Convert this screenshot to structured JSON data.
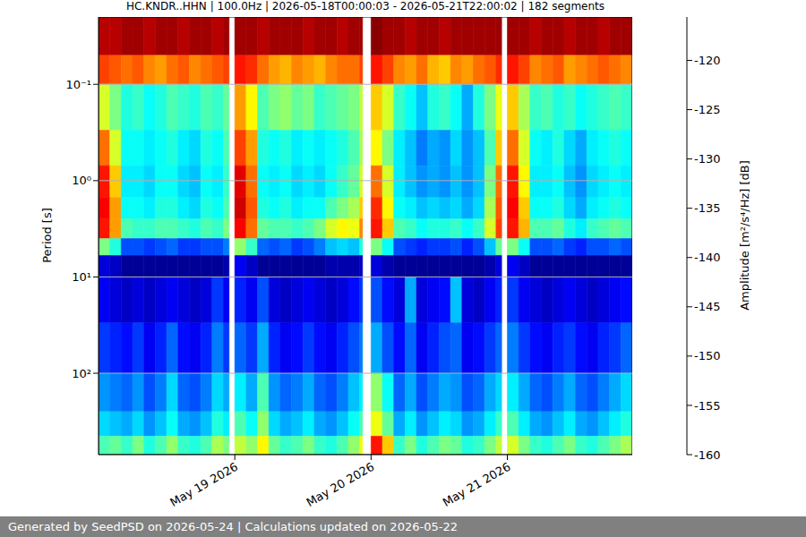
{
  "chart_data": {
    "type": "heatmap",
    "title": "HC.KNDR..HHN | 100.0Hz | 2026-05-18T00:00:03 - 2026-05-21T22:00:02 | 182 segments",
    "ylabel": "Period [s]",
    "footer": "Generated by SeedPSD on 2026-05-24 | Calculations updated on 2026-05-22",
    "log": "y",
    "grid": true,
    "x": [
      "2026-05-18T00:00",
      "2026-05-18T02:00",
      "2026-05-18T04:00",
      "2026-05-18T06:00",
      "2026-05-18T08:00",
      "2026-05-18T10:00",
      "2026-05-18T12:00",
      "2026-05-18T14:00",
      "2026-05-18T16:00",
      "2026-05-18T18:00",
      "2026-05-18T20:00",
      "2026-05-18T22:00",
      "2026-05-18T23:00",
      "2026-05-19T00:00",
      "2026-05-19T02:00",
      "2026-05-19T04:00",
      "2026-05-19T06:00",
      "2026-05-19T08:00",
      "2026-05-19T10:00",
      "2026-05-19T12:00",
      "2026-05-19T14:00",
      "2026-05-19T16:00",
      "2026-05-19T18:00",
      "2026-05-19T20:00",
      "2026-05-19T22:00",
      "2026-05-19T22:30",
      "2026-05-20T00:00",
      "2026-05-20T02:00",
      "2026-05-20T04:00",
      "2026-05-20T06:00",
      "2026-05-20T08:00",
      "2026-05-20T10:00",
      "2026-05-20T12:00",
      "2026-05-20T14:00",
      "2026-05-20T16:00",
      "2026-05-20T18:00",
      "2026-05-20T20:00",
      "2026-05-20T22:00",
      "2026-05-20T23:00",
      "2026-05-21T00:00",
      "2026-05-21T02:00",
      "2026-05-21T04:00",
      "2026-05-21T06:00",
      "2026-05-21T08:00",
      "2026-05-21T10:00",
      "2026-05-21T12:00",
      "2026-05-21T14:00",
      "2026-05-21T16:00",
      "2026-05-21T18:00",
      "2026-05-21T20:00"
    ],
    "xlim": [
      "2026-05-18T00:00",
      "2026-05-21T22:00"
    ],
    "xticks": [
      {
        "value": "2026-05-19T00:00",
        "label": "May 19 2026"
      },
      {
        "value": "2026-05-20T00:00",
        "label": "May 20 2026"
      },
      {
        "value": "2026-05-21T00:00",
        "label": "May 21 2026"
      }
    ],
    "y_edges": [
      0.02,
      0.05,
      0.1,
      0.3,
      0.7,
      1.5,
      2.5,
      4,
      6,
      10,
      30,
      100,
      250,
      450,
      700
    ],
    "ylim": [
      0.02,
      700
    ],
    "yticks": [
      {
        "value": 0.1,
        "label": "10⁻¹"
      },
      {
        "value": 1,
        "label": "10⁰"
      },
      {
        "value": 10,
        "label": "10¹"
      },
      {
        "value": 100,
        "label": "10²"
      }
    ],
    "cells": [
      [
        -118,
        -118,
        -117,
        -117,
        -118,
        -117,
        -117,
        -118,
        -117,
        -117,
        -118,
        -117,
        null,
        -117,
        -117,
        -118,
        -117,
        -117,
        -117,
        -118,
        -117,
        -117,
        -118,
        -117,
        -117,
        null,
        -116,
        -117,
        -117,
        -118,
        -117,
        -117,
        -118,
        -117,
        -117,
        -117,
        -117,
        -117,
        null,
        -117,
        -117,
        -118,
        -117,
        -117,
        -118,
        -117,
        -117,
        -118,
        -117,
        -117
      ],
      [
        -124,
        -125,
        -126,
        -125,
        -127,
        -128,
        -126,
        -125,
        -127,
        -126,
        -125,
        -124,
        null,
        -122,
        -123,
        -126,
        -128,
        -129,
        -127,
        -128,
        -129,
        -127,
        -126,
        -126,
        -124,
        null,
        -122,
        -124,
        -127,
        -128,
        -126,
        -129,
        -130,
        -127,
        -128,
        -126,
        -125,
        -123,
        null,
        -122,
        -124,
        -127,
        -126,
        -125,
        -128,
        -127,
        -126,
        -125,
        -126,
        -127
      ],
      [
        -134,
        -138,
        -142,
        -141,
        -143,
        -142,
        -140,
        -141,
        -142,
        -140,
        -141,
        -139,
        null,
        -128,
        -132,
        -140,
        -138,
        -137,
        -139,
        -138,
        -141,
        -140,
        -139,
        -138,
        -135,
        null,
        -130,
        -134,
        -141,
        -143,
        -146,
        -142,
        -141,
        -143,
        -147,
        -142,
        -138,
        -133,
        null,
        -130,
        -136,
        -141,
        -140,
        -142,
        -141,
        -143,
        -142,
        -141,
        -140,
        -141
      ],
      [
        -126,
        -134,
        -143,
        -143,
        -144,
        -143,
        -142,
        -144,
        -145,
        -142,
        -143,
        -140,
        null,
        -124,
        -128,
        -142,
        -143,
        -142,
        -144,
        -143,
        -144,
        -143,
        -142,
        -140,
        -136,
        null,
        -132,
        -138,
        -144,
        -146,
        -149,
        -147,
        -148,
        -145,
        -148,
        -146,
        -140,
        -130,
        null,
        -126,
        -134,
        -143,
        -144,
        -142,
        -145,
        -147,
        -144,
        -143,
        -142,
        -143
      ],
      [
        -122,
        -130,
        -144,
        -144,
        -145,
        -143,
        -143,
        -145,
        -146,
        -143,
        -144,
        -141,
        null,
        -120,
        -126,
        -143,
        -144,
        -143,
        -145,
        -144,
        -145,
        -143,
        -141,
        -139,
        -134,
        null,
        -126,
        -134,
        -144,
        -146,
        -148,
        -147,
        -148,
        -146,
        -148,
        -146,
        -138,
        -126,
        null,
        -122,
        -132,
        -144,
        -144,
        -143,
        -146,
        -148,
        -145,
        -144,
        -143,
        -144
      ],
      [
        -121,
        -128,
        -143,
        -143,
        -144,
        -142,
        -142,
        -144,
        -145,
        -142,
        -143,
        -140,
        null,
        -119,
        -125,
        -142,
        -143,
        -142,
        -144,
        -143,
        -143,
        -140,
        -138,
        -136,
        -130,
        null,
        -123,
        -132,
        -143,
        -144,
        -146,
        -145,
        -146,
        -145,
        -147,
        -145,
        -136,
        -125,
        null,
        -121,
        -130,
        -143,
        -143,
        -142,
        -145,
        -147,
        -144,
        -143,
        -142,
        -143
      ],
      [
        -122,
        -128,
        -140,
        -141,
        -141,
        -140,
        -140,
        -141,
        -142,
        -140,
        -141,
        -138,
        null,
        -121,
        -126,
        -139,
        -140,
        -140,
        -141,
        -140,
        -138,
        -134,
        -132,
        -133,
        -127,
        null,
        -122,
        -130,
        -140,
        -141,
        -143,
        -142,
        -142,
        -141,
        -143,
        -141,
        -134,
        -124,
        null,
        -122,
        -129,
        -140,
        -140,
        -139,
        -142,
        -144,
        -141,
        -140,
        -139,
        -140
      ],
      [
        -138,
        -142,
        -151,
        -151,
        -152,
        -151,
        -150,
        -152,
        -152,
        -151,
        -151,
        -149,
        null,
        -137,
        -141,
        -150,
        -151,
        -150,
        -152,
        -151,
        -149,
        -146,
        -145,
        -146,
        -142,
        null,
        -138,
        -143,
        -151,
        -152,
        -153,
        -152,
        -152,
        -151,
        -153,
        -151,
        -146,
        -139,
        null,
        -138,
        -143,
        -151,
        -151,
        -150,
        -152,
        -153,
        -151,
        -151,
        -150,
        -151
      ],
      [
        -156,
        -157,
        -159,
        -159,
        -159,
        -159,
        -159,
        -159,
        -159,
        -159,
        -159,
        -158,
        null,
        -155,
        -157,
        -159,
        -159,
        -159,
        -159,
        -159,
        -159,
        -158,
        -158,
        -158,
        -157,
        null,
        -156,
        -158,
        -159,
        -159,
        -159,
        -159,
        -159,
        -159,
        -159,
        -159,
        -158,
        -156,
        null,
        -155,
        -157,
        -159,
        -159,
        -159,
        -159,
        -159,
        -159,
        -159,
        -159,
        -159
      ],
      [
        -155,
        -156,
        -157,
        -156,
        -157,
        -156,
        -155,
        -156,
        -157,
        -156,
        -152,
        -155,
        null,
        -153,
        -155,
        -151,
        -156,
        -157,
        -156,
        -155,
        -156,
        -157,
        -156,
        -154,
        -152,
        null,
        -151,
        -154,
        -156,
        -147,
        -156,
        -155,
        -154,
        -146,
        -156,
        -157,
        -155,
        -153,
        null,
        -152,
        -155,
        -156,
        -157,
        -156,
        -155,
        -156,
        -157,
        -156,
        -155,
        -154
      ],
      [
        -152,
        -153,
        -154,
        -152,
        -155,
        -153,
        -150,
        -154,
        -155,
        -153,
        -149,
        -152,
        null,
        -150,
        -152,
        -147,
        -153,
        -155,
        -154,
        -152,
        -154,
        -155,
        -153,
        -151,
        -149,
        null,
        -147,
        -151,
        -154,
        -150,
        -155,
        -153,
        -151,
        -150,
        -155,
        -154,
        -152,
        -150,
        null,
        -149,
        -152,
        -154,
        -155,
        -153,
        -152,
        -154,
        -155,
        -153,
        -152,
        -150
      ],
      [
        -148,
        -149,
        -150,
        -148,
        -151,
        -149,
        -145,
        -150,
        -151,
        -149,
        -145,
        -147,
        null,
        -144,
        -147,
        -140,
        -148,
        -150,
        -149,
        -147,
        -150,
        -151,
        -149,
        -146,
        -144,
        null,
        -137,
        -143,
        -150,
        -147,
        -151,
        -149,
        -147,
        -148,
        -151,
        -150,
        -147,
        -145,
        null,
        -144,
        -147,
        -150,
        -151,
        -149,
        -147,
        -150,
        -151,
        -149,
        -147,
        -145
      ],
      [
        -145,
        -146,
        -147,
        -145,
        -148,
        -146,
        -143,
        -147,
        -148,
        -146,
        -142,
        -144,
        null,
        -140,
        -143,
        -137,
        -145,
        -147,
        -146,
        -144,
        -147,
        -148,
        -146,
        -143,
        -140,
        null,
        -133,
        -139,
        -147,
        -144,
        -148,
        -146,
        -144,
        -145,
        -148,
        -147,
        -144,
        -141,
        null,
        -140,
        -144,
        -147,
        -148,
        -146,
        -144,
        -147,
        -148,
        -146,
        -144,
        -142
      ],
      [
        -140,
        -139,
        -141,
        -138,
        -142,
        -140,
        -137,
        -141,
        -142,
        -140,
        -136,
        -138,
        null,
        -135,
        -137,
        -132,
        -139,
        -141,
        -140,
        -138,
        -141,
        -142,
        -140,
        -137,
        -133,
        null,
        -122,
        -130,
        -141,
        -138,
        -142,
        -140,
        -138,
        -139,
        -142,
        -141,
        -138,
        -135,
        null,
        -134,
        -138,
        -141,
        -142,
        -140,
        -138,
        -141,
        -142,
        -140,
        -138,
        -136
      ]
    ],
    "colorbar": {
      "label": "Amplitude [m²/s⁴/Hz] [dB]",
      "lim": [
        -160,
        -115.6
      ],
      "ticks": [
        -160,
        -155,
        -150,
        -145,
        -140,
        -135,
        -130,
        -125,
        -120
      ]
    }
  }
}
